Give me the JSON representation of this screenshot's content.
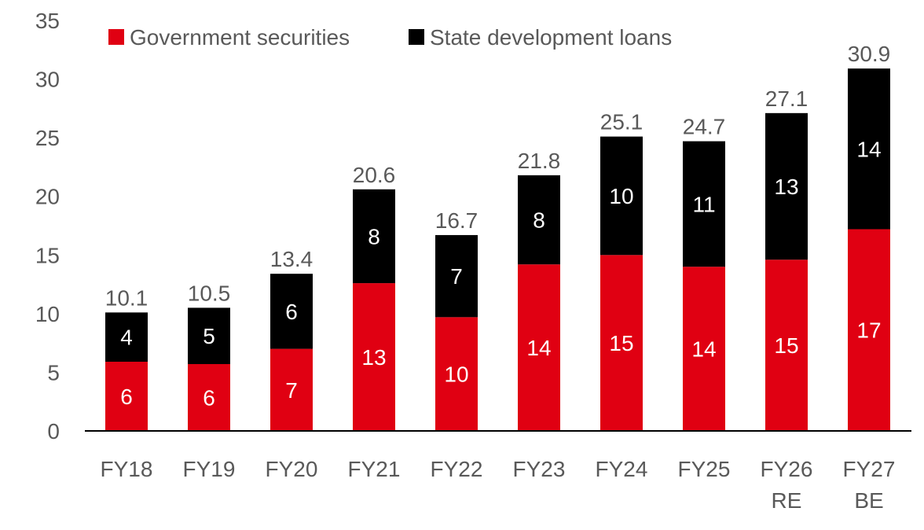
{
  "chart_data": {
    "type": "bar",
    "stacked": true,
    "title": "",
    "xlabel": "",
    "ylabel": "",
    "ylim": [
      0,
      35
    ],
    "yticks": [
      0,
      5,
      10,
      15,
      20,
      25,
      30,
      35
    ],
    "grid": false,
    "legend_placement": "top-left",
    "categories": [
      [
        "FY18"
      ],
      [
        "FY19"
      ],
      [
        "FY20"
      ],
      [
        "FY21"
      ],
      [
        "FY22"
      ],
      [
        "FY23"
      ],
      [
        "FY24"
      ],
      [
        "FY25"
      ],
      [
        "FY26",
        "RE"
      ],
      [
        "FY27",
        "BE"
      ]
    ],
    "series": [
      {
        "name": "Government securities",
        "color": "#E00012",
        "values": [
          5.9,
          5.7,
          7.0,
          12.6,
          9.7,
          14.2,
          15.0,
          14.0,
          14.6,
          17.2
        ],
        "labels": [
          "6",
          "6",
          "7",
          "13",
          "10",
          "14",
          "15",
          "14",
          "15",
          "17"
        ]
      },
      {
        "name": "State development loans",
        "color": "#000000",
        "values": [
          4.2,
          4.8,
          6.4,
          8.0,
          7.0,
          7.6,
          10.1,
          10.7,
          12.5,
          13.7
        ],
        "labels": [
          "4",
          "5",
          "6",
          "8",
          "7",
          "8",
          "10",
          "11",
          "13",
          "14"
        ]
      }
    ],
    "totals": [
      "10.1",
      "10.5",
      "13.4",
      "20.6",
      "16.7",
      "21.8",
      "25.1",
      "24.7",
      "27.1",
      "30.9"
    ]
  }
}
